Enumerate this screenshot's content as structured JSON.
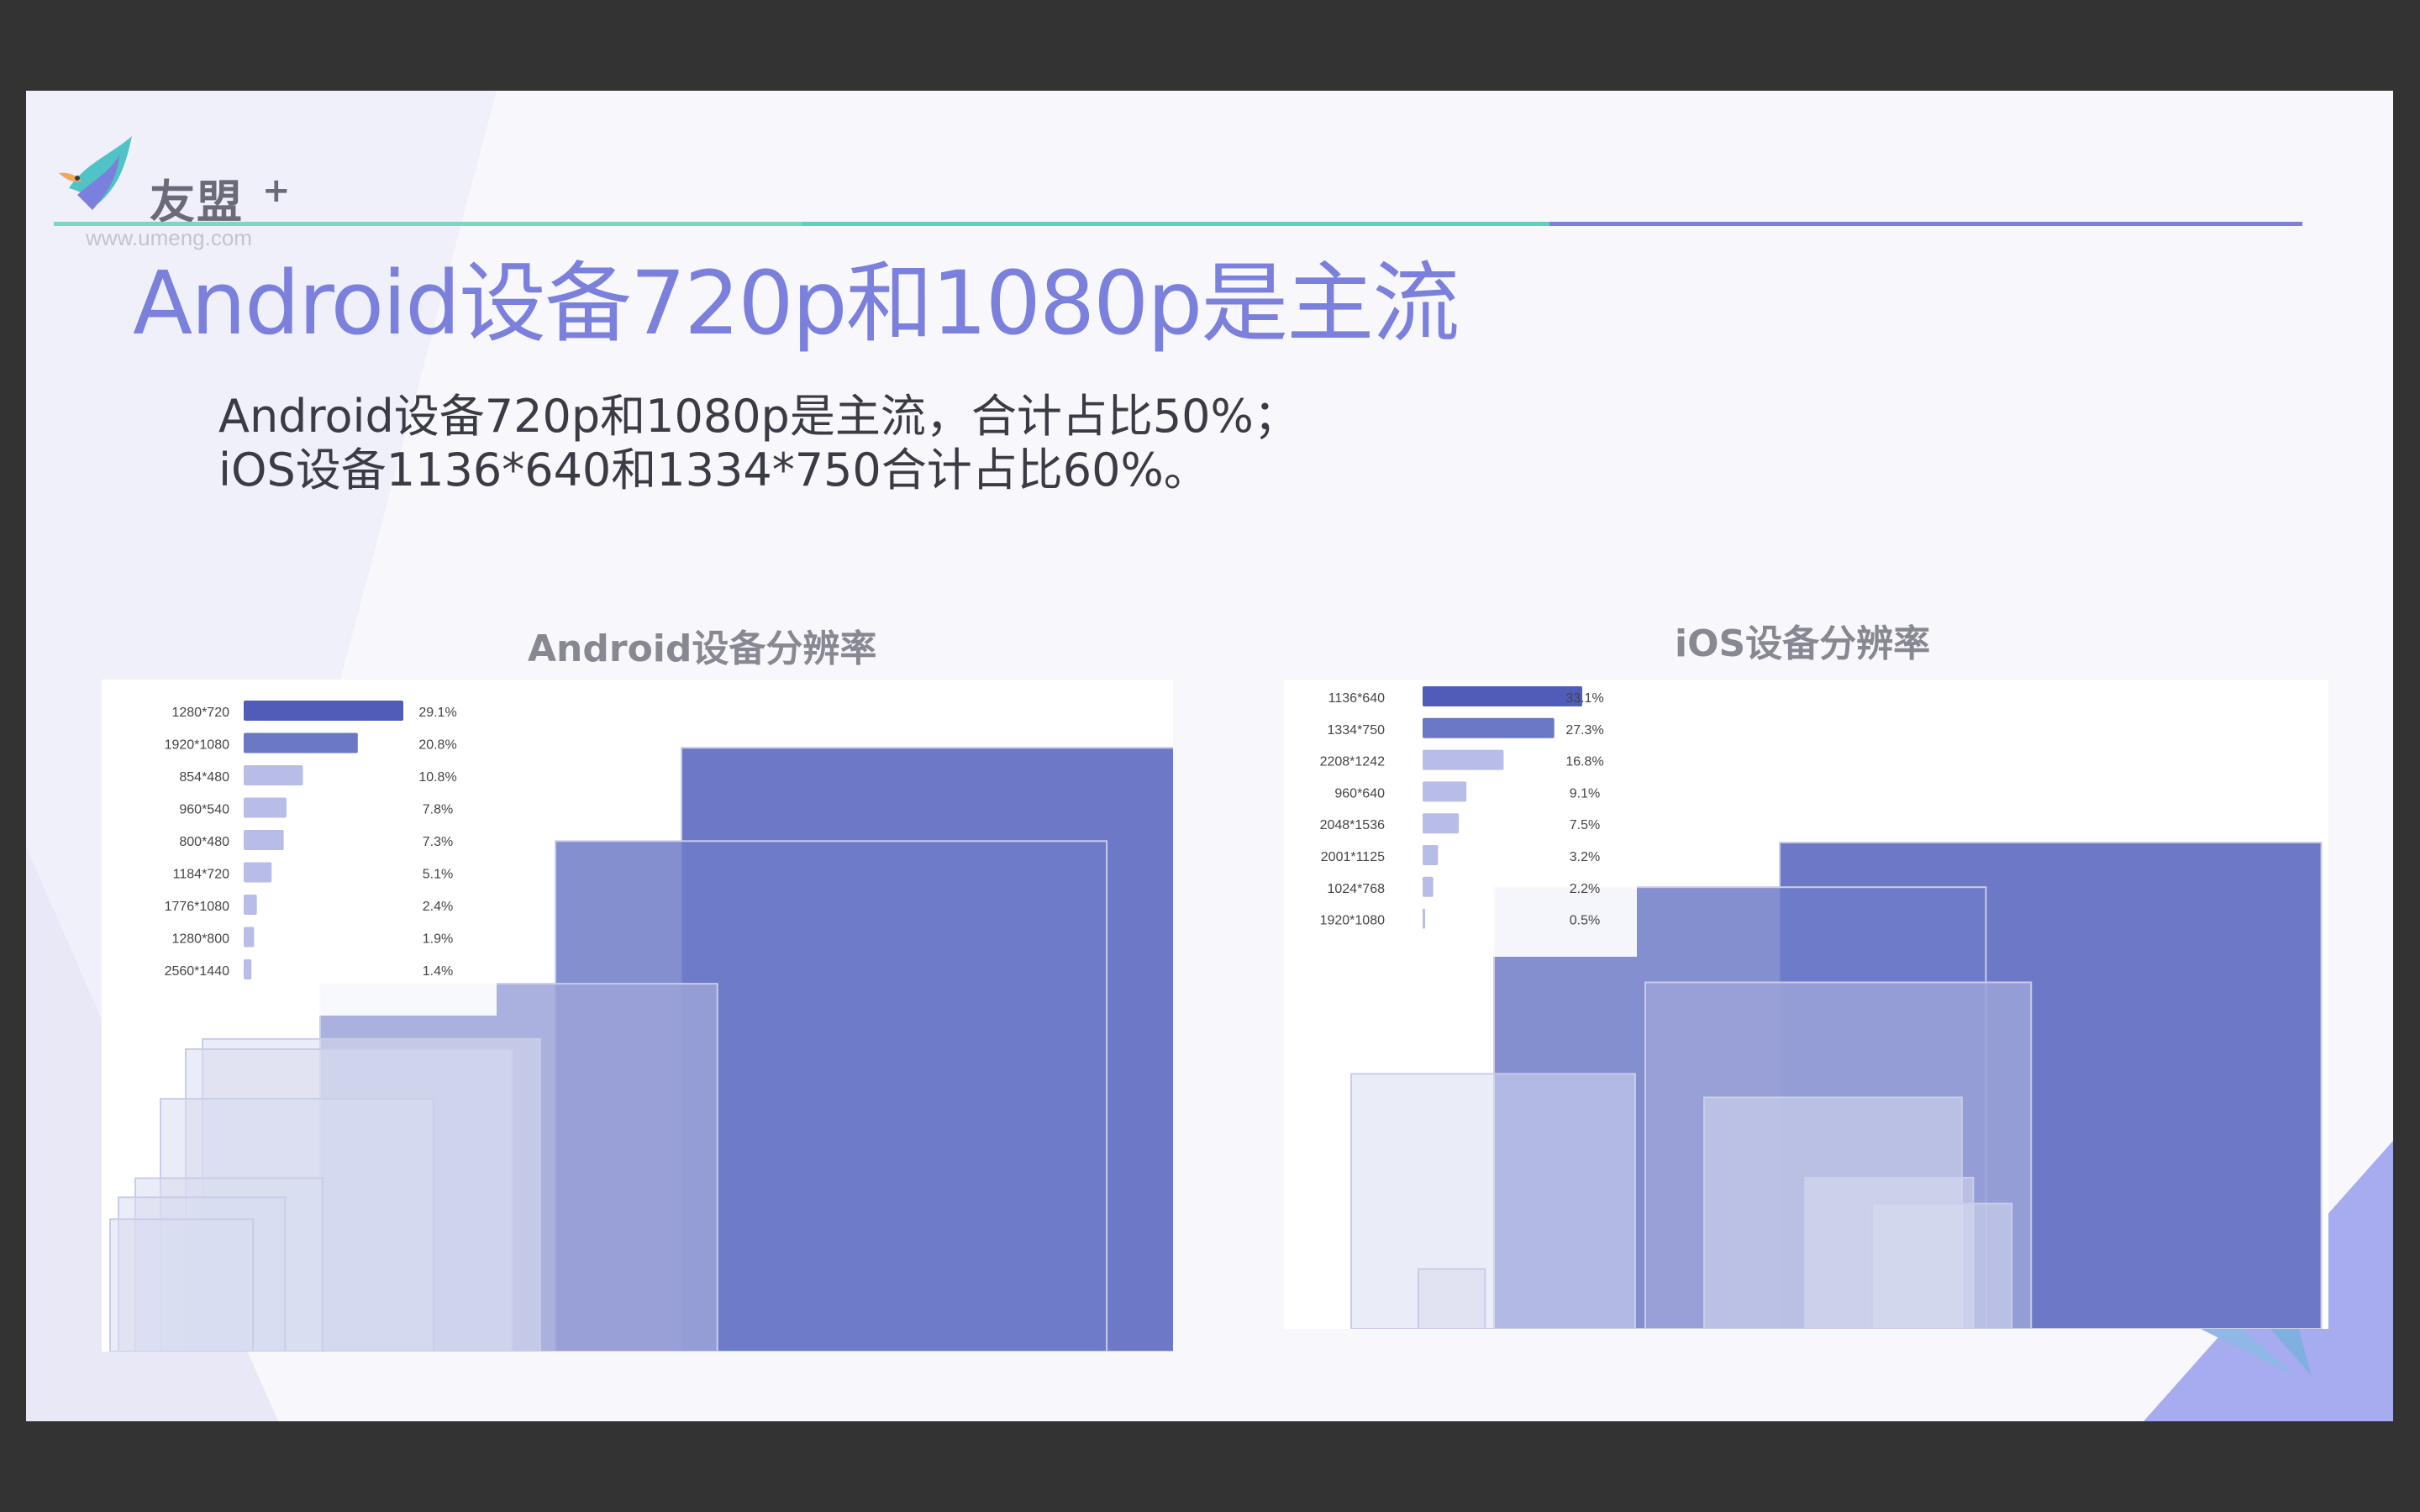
{
  "logo": {
    "brand": "友盟",
    "plus": "+",
    "url": "www.umeng.com"
  },
  "title": "Android设备720p和1080p是主流",
  "subtitle": {
    "line1": "Android设备720p和1080p是主流，合计占比50%；",
    "line2": "iOS设备1136*640和1334*750合计占比60%。"
  },
  "colors": {
    "accent": "#7b80dc",
    "bar_dark": "#4f5db8",
    "bar_mid": "#6b78c4",
    "bar_light": "#b7bde6",
    "rule_green": "#7ed6c2",
    "rule_teal": "#5fcfc0",
    "rule_blue": "#7b80dc"
  },
  "chart_data": [
    {
      "type": "bar",
      "title": "Android设备分辨率",
      "categories": [
        "1280*720",
        "1920*1080",
        "854*480",
        "960*540",
        "800*480",
        "1184*720",
        "1776*1080",
        "1280*800",
        "2560*1440"
      ],
      "values": [
        29.1,
        20.8,
        10.8,
        7.8,
        7.3,
        5.1,
        2.4,
        1.9,
        1.4
      ],
      "labels": [
        "29.1%",
        "20.8%",
        "10.8%",
        "7.8%",
        "7.3%",
        "5.1%",
        "2.4%",
        "1.9%",
        "1.4%"
      ],
      "unit": "%"
    },
    {
      "type": "bar",
      "title": "iOS设备分辨率",
      "categories": [
        "1136*640",
        "1334*750",
        "2208*1242",
        "960*640",
        "2048*1536",
        "2001*1125",
        "1024*768",
        "1920*1080"
      ],
      "values": [
        33.1,
        27.3,
        16.8,
        9.1,
        7.5,
        3.2,
        2.2,
        0.5
      ],
      "labels": [
        "33.1%",
        "27.3%",
        "16.8%",
        "9.1%",
        "7.5%",
        "3.2%",
        "2.2%",
        "0.5%"
      ],
      "unit": "%"
    }
  ]
}
